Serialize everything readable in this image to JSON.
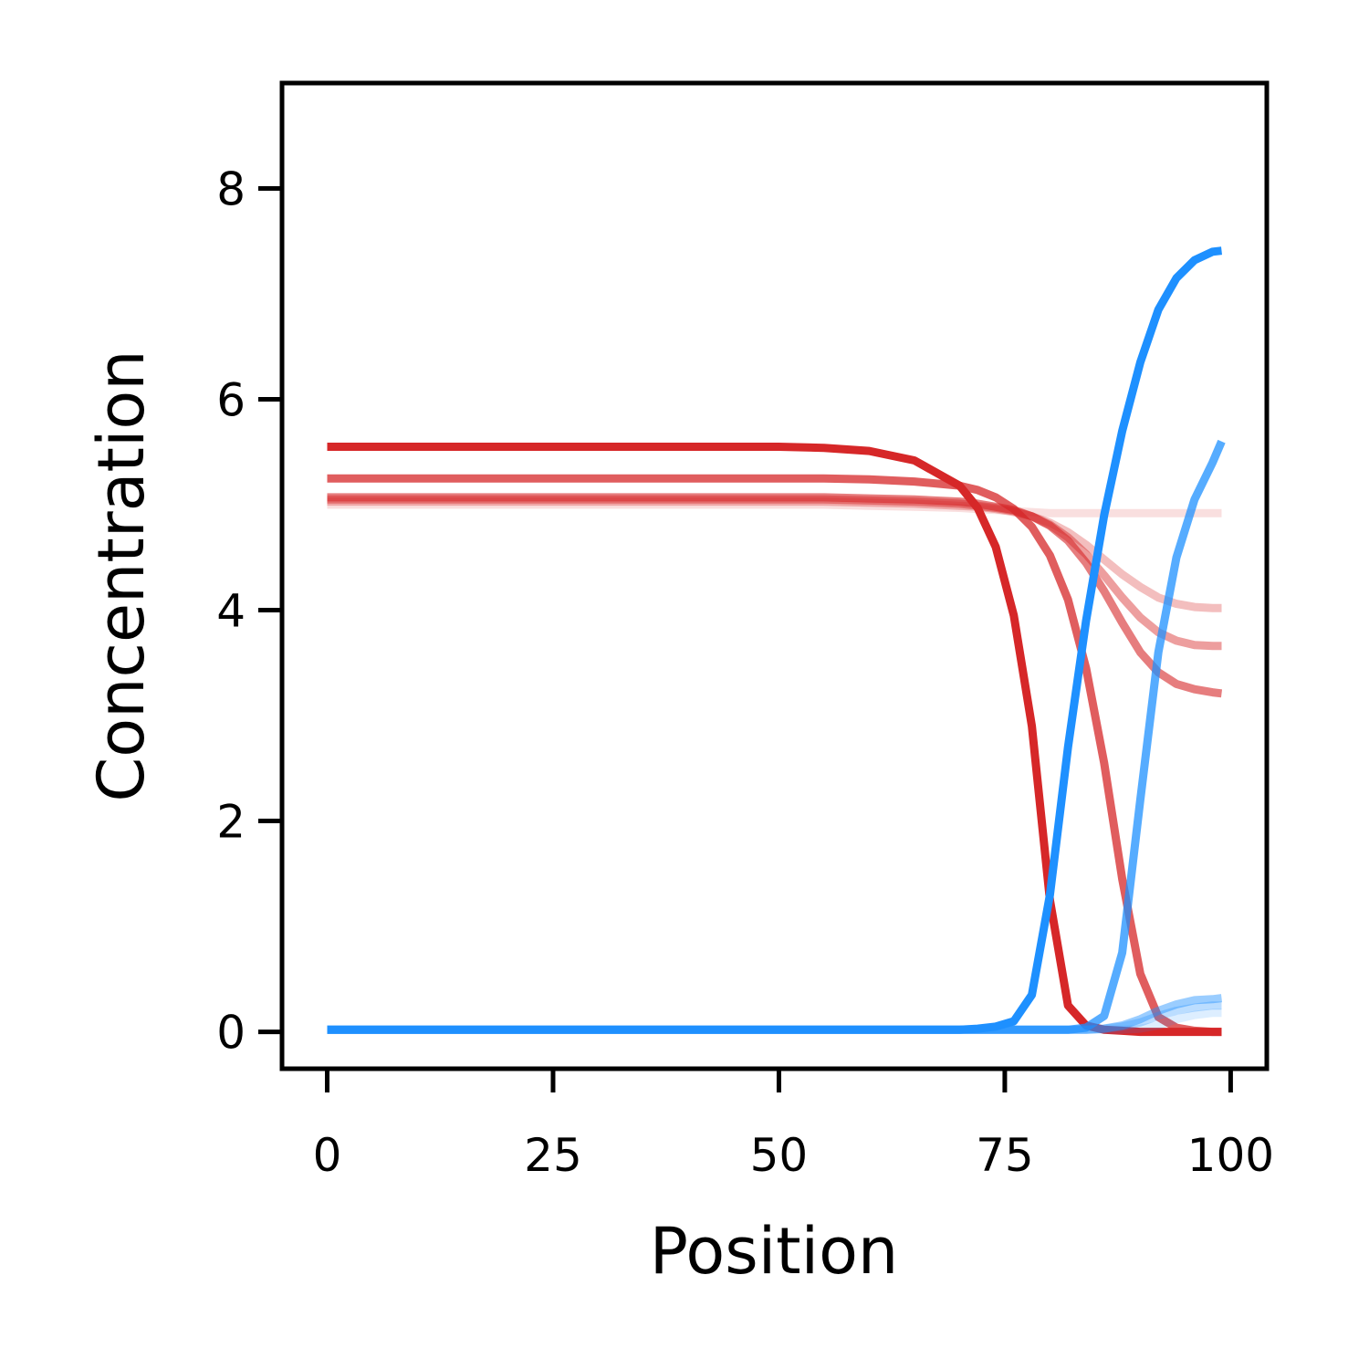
{
  "chart_data": {
    "type": "line",
    "title": "",
    "xlabel": "Position",
    "ylabel": "Concentration",
    "xlim": [
      -5,
      104
    ],
    "ylim": [
      -0.35,
      9
    ],
    "xticks": [
      0,
      25,
      50,
      75,
      100
    ],
    "yticks": [
      0,
      2,
      4,
      6,
      8
    ],
    "xtick_labels": [
      "0",
      "25",
      "50",
      "75",
      "100"
    ],
    "ytick_labels": [
      "0",
      "2",
      "4",
      "6",
      "8"
    ],
    "grid": false,
    "legend": "none",
    "x": [
      0,
      5,
      10,
      15,
      20,
      25,
      30,
      35,
      40,
      45,
      50,
      55,
      60,
      65,
      70,
      72,
      74,
      76,
      78,
      80,
      82,
      84,
      86,
      88,
      90,
      92,
      94,
      96,
      98,
      99
    ],
    "series": [
      {
        "color": "#d62728",
        "opacity": 0.15,
        "values": [
          5.0,
          5.0,
          5.0,
          5.0,
          5.0,
          5.0,
          5.0,
          5.0,
          5.0,
          5.0,
          5.0,
          5.0,
          4.99,
          4.98,
          4.97,
          4.96,
          4.95,
          4.94,
          4.93,
          4.92,
          4.92,
          4.92,
          4.92,
          4.92,
          4.92,
          4.92,
          4.92,
          4.92,
          4.92,
          4.92
        ]
      },
      {
        "color": "#d62728",
        "opacity": 0.3,
        "values": [
          5.03,
          5.03,
          5.03,
          5.03,
          5.03,
          5.03,
          5.03,
          5.03,
          5.03,
          5.03,
          5.03,
          5.03,
          5.02,
          5.01,
          4.99,
          4.98,
          4.96,
          4.93,
          4.89,
          4.83,
          4.74,
          4.62,
          4.48,
          4.34,
          4.22,
          4.12,
          4.06,
          4.03,
          4.02,
          4.02
        ]
      },
      {
        "color": "#d62728",
        "opacity": 0.45,
        "values": [
          5.05,
          5.05,
          5.05,
          5.05,
          5.05,
          5.05,
          5.05,
          5.05,
          5.05,
          5.05,
          5.05,
          5.05,
          5.04,
          5.03,
          5.01,
          4.99,
          4.97,
          4.94,
          4.89,
          4.81,
          4.69,
          4.53,
          4.33,
          4.12,
          3.93,
          3.79,
          3.71,
          3.67,
          3.66,
          3.66
        ]
      },
      {
        "color": "#d62728",
        "opacity": 0.6,
        "values": [
          5.07,
          5.07,
          5.07,
          5.07,
          5.07,
          5.07,
          5.07,
          5.07,
          5.07,
          5.07,
          5.07,
          5.07,
          5.06,
          5.05,
          5.03,
          5.01,
          4.98,
          4.95,
          4.89,
          4.8,
          4.66,
          4.45,
          4.18,
          3.88,
          3.6,
          3.41,
          3.3,
          3.25,
          3.22,
          3.21
        ]
      },
      {
        "color": "#d62728",
        "opacity": 0.75,
        "values": [
          5.25,
          5.25,
          5.25,
          5.25,
          5.25,
          5.25,
          5.25,
          5.25,
          5.25,
          5.25,
          5.25,
          5.25,
          5.24,
          5.22,
          5.18,
          5.14,
          5.07,
          4.96,
          4.79,
          4.52,
          4.1,
          3.45,
          2.55,
          1.45,
          0.55,
          0.14,
          0.04,
          0.01,
          0.0,
          0.0
        ]
      },
      {
        "color": "#d62728",
        "opacity": 1.0,
        "values": [
          5.55,
          5.55,
          5.55,
          5.55,
          5.55,
          5.55,
          5.55,
          5.55,
          5.55,
          5.55,
          5.55,
          5.54,
          5.51,
          5.42,
          5.18,
          4.97,
          4.6,
          3.95,
          2.9,
          1.25,
          0.25,
          0.06,
          0.02,
          0.01,
          0.0,
          0.0,
          0.0,
          0.0,
          0.0,
          0.0
        ]
      },
      {
        "color": "#1e90ff",
        "opacity": 0.15,
        "values": [
          0.02,
          0.02,
          0.02,
          0.02,
          0.02,
          0.02,
          0.02,
          0.02,
          0.02,
          0.02,
          0.02,
          0.02,
          0.02,
          0.02,
          0.02,
          0.02,
          0.02,
          0.02,
          0.02,
          0.02,
          0.02,
          0.02,
          0.02,
          0.02,
          0.03,
          0.06,
          0.12,
          0.16,
          0.18,
          0.18
        ]
      },
      {
        "color": "#1e90ff",
        "opacity": 0.3,
        "values": [
          0.02,
          0.02,
          0.02,
          0.02,
          0.02,
          0.02,
          0.02,
          0.02,
          0.02,
          0.02,
          0.02,
          0.02,
          0.02,
          0.02,
          0.02,
          0.02,
          0.02,
          0.02,
          0.02,
          0.02,
          0.02,
          0.02,
          0.03,
          0.05,
          0.09,
          0.15,
          0.2,
          0.23,
          0.25,
          0.25
        ]
      },
      {
        "color": "#1e90ff",
        "opacity": 0.45,
        "values": [
          0.02,
          0.02,
          0.02,
          0.02,
          0.02,
          0.02,
          0.02,
          0.02,
          0.02,
          0.02,
          0.02,
          0.02,
          0.02,
          0.02,
          0.02,
          0.02,
          0.02,
          0.02,
          0.02,
          0.02,
          0.02,
          0.02,
          0.03,
          0.06,
          0.12,
          0.2,
          0.26,
          0.3,
          0.31,
          0.32
        ]
      },
      {
        "color": "#1e90ff",
        "opacity": 0.75,
        "values": [
          0.02,
          0.02,
          0.02,
          0.02,
          0.02,
          0.02,
          0.02,
          0.02,
          0.02,
          0.02,
          0.02,
          0.02,
          0.02,
          0.02,
          0.02,
          0.02,
          0.02,
          0.02,
          0.02,
          0.02,
          0.02,
          0.04,
          0.15,
          0.75,
          2.2,
          3.6,
          4.5,
          5.05,
          5.4,
          5.6
        ]
      },
      {
        "color": "#1e90ff",
        "opacity": 1.0,
        "values": [
          0.02,
          0.02,
          0.02,
          0.02,
          0.02,
          0.02,
          0.02,
          0.02,
          0.02,
          0.02,
          0.02,
          0.02,
          0.02,
          0.02,
          0.02,
          0.03,
          0.05,
          0.1,
          0.35,
          1.3,
          2.7,
          3.9,
          4.9,
          5.7,
          6.35,
          6.85,
          7.15,
          7.32,
          7.4,
          7.41
        ]
      }
    ]
  }
}
